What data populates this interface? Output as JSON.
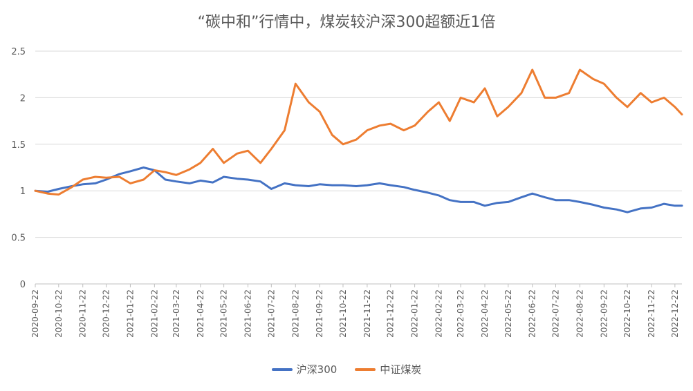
{
  "chart_data": {
    "type": "line",
    "title": "“碳中和”行情中，煤炭较沪深300超额近1倍",
    "xlabel": "",
    "ylabel": "",
    "ylim": [
      0,
      2.5
    ],
    "yticks": [
      "0",
      "0.5",
      "1",
      "1.5",
      "2",
      "2.5"
    ],
    "grid": true,
    "legend_position": "bottom",
    "x_tick_labels": [
      "2020-09-22",
      "2020-10-22",
      "2020-11-22",
      "2020-12-22",
      "2021-01-22",
      "2021-02-22",
      "2021-03-22",
      "2021-04-22",
      "2021-05-22",
      "2021-06-22",
      "2021-07-22",
      "2021-08-22",
      "2021-09-22",
      "2021-10-22",
      "2021-11-22",
      "2021-12-22",
      "2022-01-22",
      "2022-02-22",
      "2022-03-22",
      "2022-04-22",
      "2022-05-22",
      "2022-06-22",
      "2022-07-22",
      "2022-08-22",
      "2022-09-22",
      "2022-10-22",
      "2022-11-22",
      "2022-12-22"
    ],
    "x": [
      "2020-09-22",
      "2020-10-08",
      "2020-10-22",
      "2020-11-08",
      "2020-11-22",
      "2020-12-08",
      "2020-12-22",
      "2021-01-08",
      "2021-01-22",
      "2021-02-08",
      "2021-02-22",
      "2021-03-08",
      "2021-03-22",
      "2021-04-08",
      "2021-04-22",
      "2021-05-08",
      "2021-05-22",
      "2021-06-08",
      "2021-06-22",
      "2021-07-08",
      "2021-07-22",
      "2021-08-08",
      "2021-08-22",
      "2021-09-08",
      "2021-09-22",
      "2021-10-08",
      "2021-10-22",
      "2021-11-08",
      "2021-11-22",
      "2021-12-08",
      "2021-12-22",
      "2022-01-08",
      "2022-01-22",
      "2022-02-08",
      "2022-02-22",
      "2022-03-08",
      "2022-03-22",
      "2022-04-08",
      "2022-04-22",
      "2022-05-08",
      "2022-05-22",
      "2022-06-08",
      "2022-06-22",
      "2022-07-08",
      "2022-07-22",
      "2022-08-08",
      "2022-08-22",
      "2022-09-08",
      "2022-09-22",
      "2022-10-08",
      "2022-10-22",
      "2022-11-08",
      "2022-11-22",
      "2022-12-08",
      "2022-12-22",
      "2022-12-31"
    ],
    "series": [
      {
        "name": "沪深300",
        "color": "#4472C4",
        "values": [
          1.0,
          0.99,
          1.02,
          1.05,
          1.07,
          1.08,
          1.12,
          1.18,
          1.21,
          1.25,
          1.22,
          1.12,
          1.1,
          1.08,
          1.11,
          1.09,
          1.15,
          1.13,
          1.12,
          1.1,
          1.02,
          1.08,
          1.06,
          1.05,
          1.07,
          1.06,
          1.06,
          1.05,
          1.06,
          1.08,
          1.06,
          1.04,
          1.01,
          0.98,
          0.95,
          0.9,
          0.88,
          0.88,
          0.84,
          0.87,
          0.88,
          0.93,
          0.97,
          0.93,
          0.9,
          0.9,
          0.88,
          0.85,
          0.82,
          0.8,
          0.77,
          0.81,
          0.82,
          0.86,
          0.84,
          0.84
        ]
      },
      {
        "name": "中证煤炭",
        "color": "#ED7D31",
        "values": [
          1.0,
          0.97,
          0.96,
          1.04,
          1.12,
          1.15,
          1.14,
          1.15,
          1.08,
          1.12,
          1.22,
          1.2,
          1.17,
          1.23,
          1.3,
          1.45,
          1.3,
          1.4,
          1.43,
          1.3,
          1.45,
          1.65,
          2.15,
          1.95,
          1.85,
          1.6,
          1.5,
          1.55,
          1.65,
          1.7,
          1.72,
          1.65,
          1.7,
          1.85,
          1.95,
          1.75,
          2.0,
          1.95,
          2.1,
          1.8,
          1.9,
          2.05,
          2.3,
          2.0,
          2.0,
          2.05,
          2.3,
          2.2,
          2.15,
          2.0,
          1.9,
          2.05,
          1.95,
          2.0,
          1.9,
          1.82
        ]
      }
    ]
  }
}
